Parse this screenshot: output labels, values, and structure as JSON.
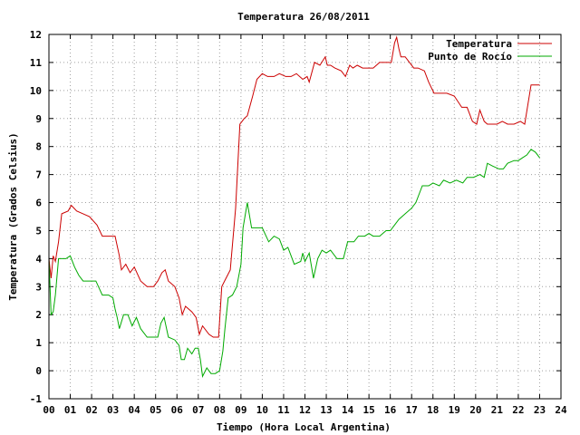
{
  "chart_data": {
    "type": "line",
    "title": "Temperatura 26/08/2011",
    "xlabel": "Tiempo (Hora Local Argentina)",
    "ylabel": "Temperatura (Grados Celsius)",
    "xlim": [
      0,
      24
    ],
    "ylim": [
      -1,
      12
    ],
    "x_ticks": [
      "00",
      "01",
      "02",
      "03",
      "04",
      "05",
      "06",
      "07",
      "08",
      "09",
      "10",
      "11",
      "12",
      "13",
      "14",
      "15",
      "16",
      "17",
      "18",
      "19",
      "20",
      "21",
      "22",
      "23",
      "24"
    ],
    "y_ticks": [
      "-1",
      "0",
      "1",
      "2",
      "3",
      "4",
      "5",
      "6",
      "7",
      "8",
      "9",
      "10",
      "11",
      "12"
    ],
    "grid": true,
    "legend_position": "top-right",
    "series": [
      {
        "name": "Temperatura",
        "color": "#cc0000",
        "x": [
          0,
          0.1,
          0.2,
          0.3,
          0.45,
          0.6,
          0.9,
          1.05,
          1.3,
          1.6,
          1.9,
          2.25,
          2.5,
          2.8,
          3.1,
          3.3,
          3.4,
          3.6,
          3.8,
          4.0,
          4.3,
          4.6,
          4.9,
          5.1,
          5.3,
          5.45,
          5.6,
          5.9,
          6.1,
          6.25,
          6.4,
          6.7,
          6.9,
          7.05,
          7.2,
          7.5,
          7.7,
          7.95,
          8.1,
          8.3,
          8.5,
          8.75,
          8.95,
          9.05,
          9.15,
          9.3,
          9.55,
          9.75,
          10.0,
          10.25,
          10.55,
          10.8,
          11.1,
          11.35,
          11.6,
          11.9,
          12.1,
          12.2,
          12.45,
          12.7,
          12.95,
          13.05,
          13.2,
          13.4,
          13.7,
          13.9,
          14.1,
          14.25,
          14.45,
          14.7,
          14.95,
          15.2,
          15.5,
          15.8,
          16.05,
          16.2,
          16.3,
          16.4,
          16.5,
          16.7,
          16.9,
          17.1,
          17.3,
          17.6,
          17.8,
          18.05,
          18.3,
          18.65,
          19.0,
          19.35,
          19.6,
          19.85,
          20.05,
          20.2,
          20.4,
          20.55,
          20.8,
          21.0,
          21.25,
          21.5,
          21.8,
          22.1,
          22.3,
          22.45,
          22.6,
          22.8,
          23.0
        ],
        "values": [
          4.0,
          3.3,
          4.1,
          3.9,
          4.6,
          5.6,
          5.7,
          5.9,
          5.7,
          5.6,
          5.5,
          5.2,
          4.8,
          4.8,
          4.8,
          4.1,
          3.6,
          3.8,
          3.5,
          3.7,
          3.2,
          3.0,
          3.0,
          3.2,
          3.5,
          3.6,
          3.2,
          3.0,
          2.6,
          2.0,
          2.3,
          2.1,
          1.9,
          1.3,
          1.6,
          1.3,
          1.2,
          1.2,
          3.0,
          3.3,
          3.6,
          5.8,
          8.8,
          8.9,
          9.0,
          9.1,
          9.8,
          10.4,
          10.6,
          10.5,
          10.5,
          10.6,
          10.5,
          10.5,
          10.6,
          10.4,
          10.5,
          10.3,
          11.0,
          10.9,
          11.2,
          10.9,
          10.9,
          10.8,
          10.7,
          10.5,
          10.9,
          10.8,
          10.9,
          10.8,
          10.8,
          10.8,
          11.0,
          11.0,
          11.0,
          11.7,
          11.9,
          11.5,
          11.2,
          11.2,
          11.0,
          10.8,
          10.8,
          10.7,
          10.3,
          9.9,
          9.9,
          9.9,
          9.8,
          9.4,
          9.4,
          8.9,
          8.8,
          9.3,
          8.9,
          8.8,
          8.8,
          8.8,
          8.9,
          8.8,
          8.8,
          8.9,
          8.8,
          9.5,
          10.2,
          10.2,
          10.2
        ]
      },
      {
        "name": "Punto de Rocío",
        "color": "#00aa00",
        "x": [
          0,
          0.1,
          0.2,
          0.3,
          0.45,
          0.6,
          0.8,
          1.0,
          1.2,
          1.4,
          1.6,
          1.9,
          2.2,
          2.5,
          2.8,
          3.0,
          3.1,
          3.2,
          3.3,
          3.5,
          3.7,
          3.9,
          4.1,
          4.3,
          4.6,
          4.9,
          5.1,
          5.25,
          5.4,
          5.6,
          5.9,
          6.1,
          6.2,
          6.35,
          6.5,
          6.7,
          6.85,
          7.0,
          7.1,
          7.2,
          7.4,
          7.6,
          7.8,
          8.0,
          8.15,
          8.25,
          8.4,
          8.6,
          8.8,
          9.0,
          9.1,
          9.3,
          9.5,
          9.75,
          10.0,
          10.3,
          10.55,
          10.8,
          11.0,
          11.2,
          11.5,
          11.8,
          11.9,
          12.0,
          12.2,
          12.4,
          12.6,
          12.8,
          13.0,
          13.2,
          13.5,
          13.8,
          14.0,
          14.3,
          14.5,
          14.8,
          15.0,
          15.2,
          15.5,
          15.8,
          16.0,
          16.2,
          16.4,
          16.7,
          17.0,
          17.2,
          17.5,
          17.8,
          18.0,
          18.3,
          18.5,
          18.8,
          19.1,
          19.4,
          19.6,
          19.9,
          20.2,
          20.4,
          20.55,
          20.8,
          21.1,
          21.3,
          21.5,
          21.8,
          22.0,
          22.2,
          22.4,
          22.6,
          22.8,
          23.0
        ],
        "values": [
          4.0,
          2.0,
          2.1,
          2.7,
          4.0,
          4.0,
          4.0,
          4.1,
          3.7,
          3.4,
          3.2,
          3.2,
          3.2,
          2.7,
          2.7,
          2.6,
          2.2,
          1.9,
          1.5,
          2.0,
          2.0,
          1.6,
          1.9,
          1.5,
          1.2,
          1.2,
          1.2,
          1.7,
          1.9,
          1.2,
          1.1,
          0.9,
          0.4,
          0.4,
          0.8,
          0.6,
          0.8,
          0.8,
          0.4,
          -0.2,
          0.1,
          -0.1,
          -0.1,
          0.0,
          0.7,
          1.5,
          2.6,
          2.7,
          3.0,
          3.8,
          5.1,
          6.0,
          5.1,
          5.1,
          5.1,
          4.6,
          4.8,
          4.7,
          4.3,
          4.4,
          3.8,
          3.9,
          4.2,
          3.9,
          4.2,
          3.3,
          4.0,
          4.3,
          4.2,
          4.3,
          4.0,
          4.0,
          4.6,
          4.6,
          4.8,
          4.8,
          4.9,
          4.8,
          4.8,
          5.0,
          5.0,
          5.2,
          5.4,
          5.6,
          5.8,
          6.0,
          6.6,
          6.6,
          6.7,
          6.6,
          6.8,
          6.7,
          6.8,
          6.7,
          6.9,
          6.9,
          7.0,
          6.9,
          7.4,
          7.3,
          7.2,
          7.2,
          7.4,
          7.5,
          7.5,
          7.6,
          7.7,
          7.9,
          7.8,
          7.6
        ]
      }
    ]
  }
}
